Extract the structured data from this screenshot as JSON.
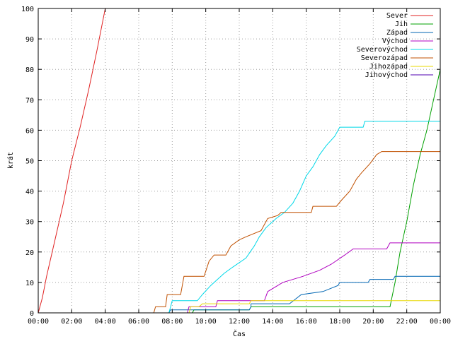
{
  "chart_data": {
    "type": "line",
    "xlabel": "Čas",
    "ylabel": "krát",
    "x_unit": "hours",
    "xlim": [
      0,
      24
    ],
    "ylim": [
      0,
      100
    ],
    "x_ticks": [
      {
        "value": 0,
        "label": "00:00"
      },
      {
        "value": 2,
        "label": "02:00"
      },
      {
        "value": 4,
        "label": "04:00"
      },
      {
        "value": 6,
        "label": "06:00"
      },
      {
        "value": 8,
        "label": "08:00"
      },
      {
        "value": 10,
        "label": "10:00"
      },
      {
        "value": 12,
        "label": "12:00"
      },
      {
        "value": 14,
        "label": "14:00"
      },
      {
        "value": 16,
        "label": "16:00"
      },
      {
        "value": 18,
        "label": "18:00"
      },
      {
        "value": 20,
        "label": "20:00"
      },
      {
        "value": 22,
        "label": "22:00"
      },
      {
        "value": 24,
        "label": "00:00"
      }
    ],
    "y_ticks": [
      0,
      10,
      20,
      30,
      40,
      50,
      60,
      70,
      80,
      90,
      100
    ],
    "grid": true,
    "legend_position": "top-right",
    "series": [
      {
        "name": "Sever",
        "color": "#e02020",
        "points": [
          [
            0,
            0
          ],
          [
            0.25,
            5
          ],
          [
            0.5,
            12
          ],
          [
            1,
            24
          ],
          [
            1.5,
            36
          ],
          [
            2,
            50
          ],
          [
            2.5,
            61
          ],
          [
            3,
            73
          ],
          [
            3.5,
            86
          ],
          [
            4,
            100
          ]
        ]
      },
      {
        "name": "Jih",
        "color": "#00a000",
        "points": [
          [
            0,
            0
          ],
          [
            9.2,
            0
          ],
          [
            9.3,
            1
          ],
          [
            12.6,
            1
          ],
          [
            12.7,
            2
          ],
          [
            21.0,
            2
          ],
          [
            21.3,
            10
          ],
          [
            21.6,
            20
          ],
          [
            22.0,
            30
          ],
          [
            22.4,
            42
          ],
          [
            22.8,
            52
          ],
          [
            23.2,
            60
          ],
          [
            23.6,
            70
          ],
          [
            24,
            80
          ]
        ]
      },
      {
        "name": "Západ",
        "color": "#0066b3",
        "points": [
          [
            0,
            0
          ],
          [
            7.8,
            0
          ],
          [
            7.9,
            1
          ],
          [
            12.6,
            1
          ],
          [
            12.7,
            2
          ],
          [
            12.7,
            3
          ],
          [
            15.0,
            3
          ],
          [
            15.7,
            6
          ],
          [
            17.0,
            7
          ],
          [
            17.9,
            9
          ],
          [
            18.0,
            10
          ],
          [
            19.7,
            10
          ],
          [
            19.8,
            11
          ],
          [
            21.2,
            11
          ],
          [
            21.3,
            12
          ],
          [
            24,
            12
          ]
        ]
      },
      {
        "name": "Východ",
        "color": "#b000c0",
        "points": [
          [
            0,
            0
          ],
          [
            8.9,
            0
          ],
          [
            9.0,
            2
          ],
          [
            10.6,
            2
          ],
          [
            10.7,
            4
          ],
          [
            13.5,
            4
          ],
          [
            13.7,
            7
          ],
          [
            14.6,
            10
          ],
          [
            15.8,
            12
          ],
          [
            16.8,
            14
          ],
          [
            17.5,
            16
          ],
          [
            18.3,
            19
          ],
          [
            18.8,
            21
          ],
          [
            20.8,
            21
          ],
          [
            21.0,
            23
          ],
          [
            24,
            23
          ]
        ]
      },
      {
        "name": "Severovýchod",
        "color": "#00d8e8",
        "points": [
          [
            0,
            0
          ],
          [
            7.8,
            0
          ],
          [
            7.9,
            2
          ],
          [
            8.0,
            4
          ],
          [
            9.5,
            4
          ],
          [
            9.8,
            6
          ],
          [
            10.3,
            9
          ],
          [
            11.1,
            13
          ],
          [
            11.6,
            15
          ],
          [
            12.4,
            18
          ],
          [
            12.9,
            22
          ],
          [
            13.2,
            25
          ],
          [
            13.6,
            28
          ],
          [
            14.2,
            31
          ],
          [
            14.7,
            33
          ],
          [
            15.2,
            36
          ],
          [
            15.6,
            40
          ],
          [
            16.0,
            45
          ],
          [
            16.4,
            48
          ],
          [
            16.8,
            52
          ],
          [
            17.2,
            55
          ],
          [
            17.7,
            58
          ],
          [
            18.0,
            61
          ],
          [
            19.4,
            61
          ],
          [
            19.5,
            63
          ],
          [
            24,
            63
          ]
        ]
      },
      {
        "name": "Severozápad",
        "color": "#c05000",
        "points": [
          [
            0,
            0
          ],
          [
            6.9,
            0
          ],
          [
            7.0,
            2
          ],
          [
            7.6,
            2
          ],
          [
            7.7,
            6
          ],
          [
            8.5,
            6
          ],
          [
            8.7,
            12
          ],
          [
            9.9,
            12
          ],
          [
            10.2,
            17
          ],
          [
            10.5,
            19
          ],
          [
            11.2,
            19
          ],
          [
            11.5,
            22
          ],
          [
            12.0,
            24
          ],
          [
            12.4,
            25
          ],
          [
            13.3,
            27
          ],
          [
            13.7,
            31
          ],
          [
            14.3,
            32
          ],
          [
            14.5,
            33
          ],
          [
            16.3,
            33
          ],
          [
            16.4,
            35
          ],
          [
            17.8,
            35
          ],
          [
            18.1,
            37
          ],
          [
            18.6,
            40
          ],
          [
            19.0,
            44
          ],
          [
            19.3,
            46
          ],
          [
            19.8,
            49
          ],
          [
            20.2,
            52
          ],
          [
            20.5,
            53
          ],
          [
            24,
            53
          ]
        ]
      },
      {
        "name": "Jihozápad",
        "color": "#e8d800",
        "points": [
          [
            0,
            0
          ],
          [
            9.0,
            0
          ],
          [
            9.1,
            2
          ],
          [
            9.6,
            2
          ],
          [
            9.8,
            3
          ],
          [
            12.6,
            3
          ],
          [
            12.7,
            4
          ],
          [
            24,
            4
          ]
        ]
      },
      {
        "name": "Jihovýchod",
        "color": "#5000b0",
        "points": [
          [
            0,
            0
          ],
          [
            24,
            0
          ]
        ]
      }
    ]
  }
}
